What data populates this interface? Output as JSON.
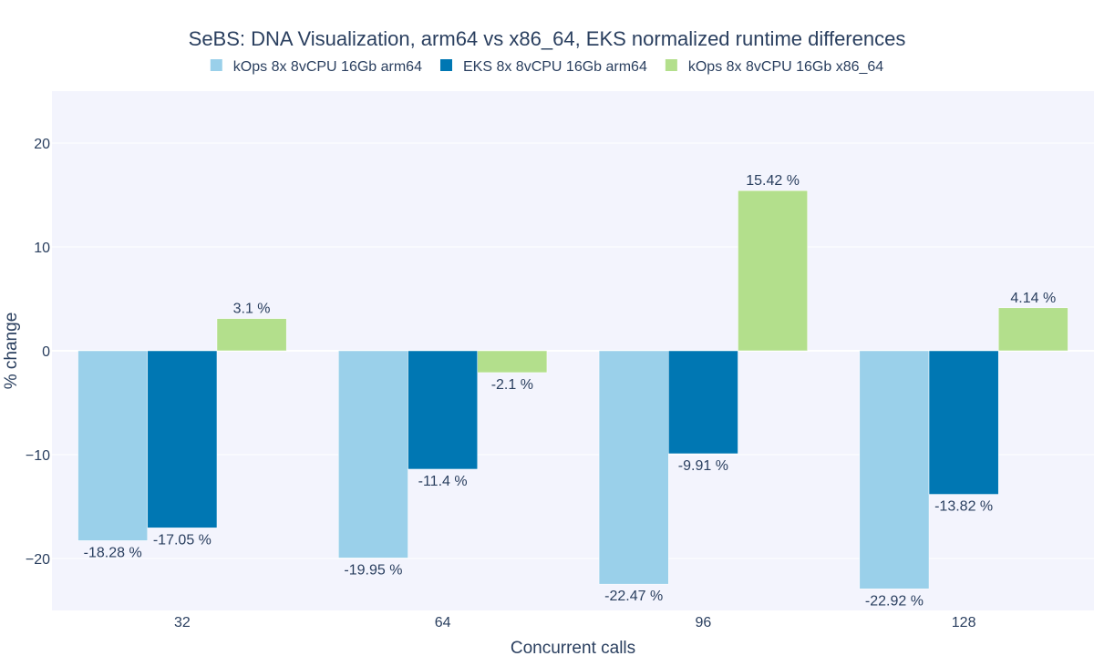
{
  "chart_data": {
    "type": "bar",
    "title": "SeBS: DNA Visualization, arm64 vs x86_64, EKS normalized runtime differences",
    "xlabel": "Concurrent calls",
    "ylabel": "% change",
    "categories": [
      "32",
      "64",
      "96",
      "128"
    ],
    "ylim": [
      -25,
      25
    ],
    "yticks": [
      -20,
      -10,
      0,
      10,
      20
    ],
    "ytick_labels": [
      "−20",
      "−10",
      "0",
      "10",
      "20"
    ],
    "grid": true,
    "legend_position": "top",
    "value_suffix": " %",
    "series": [
      {
        "name": "kOps 8x 8vCPU 16Gb arm64",
        "color": "#9ad0ea",
        "values": [
          -18.28,
          -19.95,
          -22.47,
          -22.92
        ]
      },
      {
        "name": "EKS 8x 8vCPU 16Gb arm64",
        "color": "#0077b3",
        "values": [
          -17.05,
          -11.4,
          -9.91,
          -13.82
        ]
      },
      {
        "name": "kOps 8x 8vCPU 16Gb x86_64",
        "color": "#b3df8c",
        "values": [
          3.1,
          -2.1,
          15.42,
          4.14
        ]
      }
    ]
  }
}
